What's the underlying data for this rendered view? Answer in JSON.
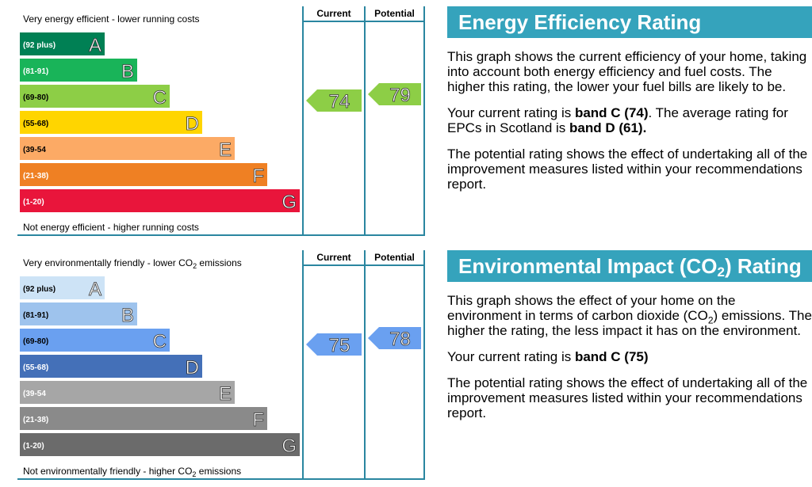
{
  "chart_data": [
    {
      "type": "bar",
      "id": "energy",
      "top_label": "Very energy efficient - lower running costs",
      "bottom_label": "Not energy efficient - higher running costs",
      "column_headers": [
        "Current",
        "Potential"
      ],
      "categories": [
        "A",
        "B",
        "C",
        "D",
        "E",
        "F",
        "G"
      ],
      "ranges": [
        "(92 plus)",
        "(81-91)",
        "(69-80)",
        "(55-68)",
        "(39-54",
        "(21-38)",
        "(1-20)"
      ],
      "band_colors": [
        "#008054",
        "#19b459",
        "#8dce46",
        "#ffd500",
        "#fcaa65",
        "#ef8023",
        "#e9153b"
      ],
      "current": 74,
      "potential": 79,
      "current_band": "C",
      "potential_band": "C"
    },
    {
      "type": "bar",
      "id": "environment",
      "top_label": "Very environmentally friendly - lower CO2 emissions",
      "bottom_label": "Not environmentally friendly - higher CO2 emissions",
      "column_headers": [
        "Current",
        "Potential"
      ],
      "categories": [
        "A",
        "B",
        "C",
        "D",
        "E",
        "F",
        "G"
      ],
      "ranges": [
        "(92 plus)",
        "(81-91)",
        "(69-80)",
        "(55-68)",
        "(39-54",
        "(21-38)",
        "(1-20)"
      ],
      "band_colors": [
        "#cde3f6",
        "#9ec3ed",
        "#6aa0f0",
        "#4470b8",
        "#a6a6a6",
        "#8a8a8a",
        "#6b6b6b"
      ],
      "current": 75,
      "potential": 78,
      "current_band": "C",
      "potential_band": "C"
    }
  ],
  "panels": {
    "energy": {
      "title": "Energy Efficiency Rating",
      "p1": "This graph shows the current efficiency of your home, taking into account both energy efficiency and fuel costs. The higher this rating, the lower your fuel bills are likely to be.",
      "p2_pre": "Your current rating is ",
      "p2_bold1": "band C (74)",
      "p2_mid": ". The average rating for EPCs in Scotland is ",
      "p2_bold2": "band D (61).",
      "p3": "The potential rating shows the effect of undertaking all of the improvement measures listed within your recommendations report."
    },
    "environment": {
      "title_pre": "Environmental Impact (CO",
      "title_sub": "2",
      "title_post": ") Rating",
      "p1_pre": "This graph shows the effect of your home on the environment in terms of carbon dioxide (CO",
      "p1_sub": "2",
      "p1_post": ") emissions. The higher the rating, the less impact it has on the environment.",
      "p2_pre": "Your current rating is ",
      "p2_bold": "band C (75)",
      "p3": "The potential rating shows the effect of undertaking all of the improvement measures listed within your recommendations report."
    }
  },
  "colors": {
    "frame": "#2a86a0",
    "arrow_energy": "#8dce46",
    "arrow_env": "#6aa0f0",
    "panel_title_bg": "#35a3bc"
  }
}
